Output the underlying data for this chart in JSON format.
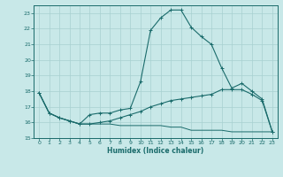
{
  "xlabel": "Humidex (Indice chaleur)",
  "ylabel": "",
  "background_color": "#c8e8e8",
  "grid_color": "#a8d0d0",
  "line_color": "#1a6b6b",
  "xlim": [
    -0.5,
    23.5
  ],
  "ylim": [
    15,
    23.5
  ],
  "yticks": [
    15,
    16,
    17,
    18,
    19,
    20,
    21,
    22,
    23
  ],
  "xticks": [
    0,
    1,
    2,
    3,
    4,
    5,
    6,
    7,
    8,
    9,
    10,
    11,
    12,
    13,
    14,
    15,
    16,
    17,
    18,
    19,
    20,
    21,
    22,
    23
  ],
  "series1_x": [
    0,
    1,
    2,
    3,
    4,
    5,
    6,
    7,
    8,
    9,
    10,
    11,
    12,
    13,
    14,
    15,
    16,
    17,
    18,
    19,
    20,
    21,
    22,
    23
  ],
  "series1_y": [
    17.9,
    16.6,
    16.3,
    16.1,
    15.9,
    15.9,
    16.0,
    16.1,
    16.3,
    16.5,
    16.7,
    17.0,
    17.2,
    17.4,
    17.5,
    17.6,
    17.7,
    17.8,
    18.1,
    18.1,
    18.1,
    17.8,
    17.4,
    15.4
  ],
  "series2_x": [
    0,
    1,
    2,
    3,
    4,
    5,
    6,
    7,
    8,
    9,
    10,
    11,
    12,
    13,
    14,
    15,
    16,
    17,
    18,
    19,
    20,
    21,
    22,
    23
  ],
  "series2_y": [
    17.9,
    16.6,
    16.3,
    16.1,
    15.9,
    16.5,
    16.6,
    16.6,
    16.8,
    16.9,
    18.6,
    21.9,
    22.7,
    23.2,
    23.2,
    22.1,
    21.5,
    21.0,
    19.5,
    18.2,
    18.5,
    18.0,
    17.5,
    15.4
  ],
  "series3_x": [
    0,
    1,
    2,
    3,
    4,
    5,
    6,
    7,
    8,
    9,
    10,
    11,
    12,
    13,
    14,
    15,
    16,
    17,
    18,
    19,
    20,
    21,
    22,
    23
  ],
  "series3_y": [
    17.9,
    16.6,
    16.3,
    16.1,
    15.9,
    15.9,
    15.9,
    15.9,
    15.8,
    15.8,
    15.8,
    15.8,
    15.8,
    15.7,
    15.7,
    15.5,
    15.5,
    15.5,
    15.5,
    15.4,
    15.4,
    15.4,
    15.4,
    15.4
  ]
}
